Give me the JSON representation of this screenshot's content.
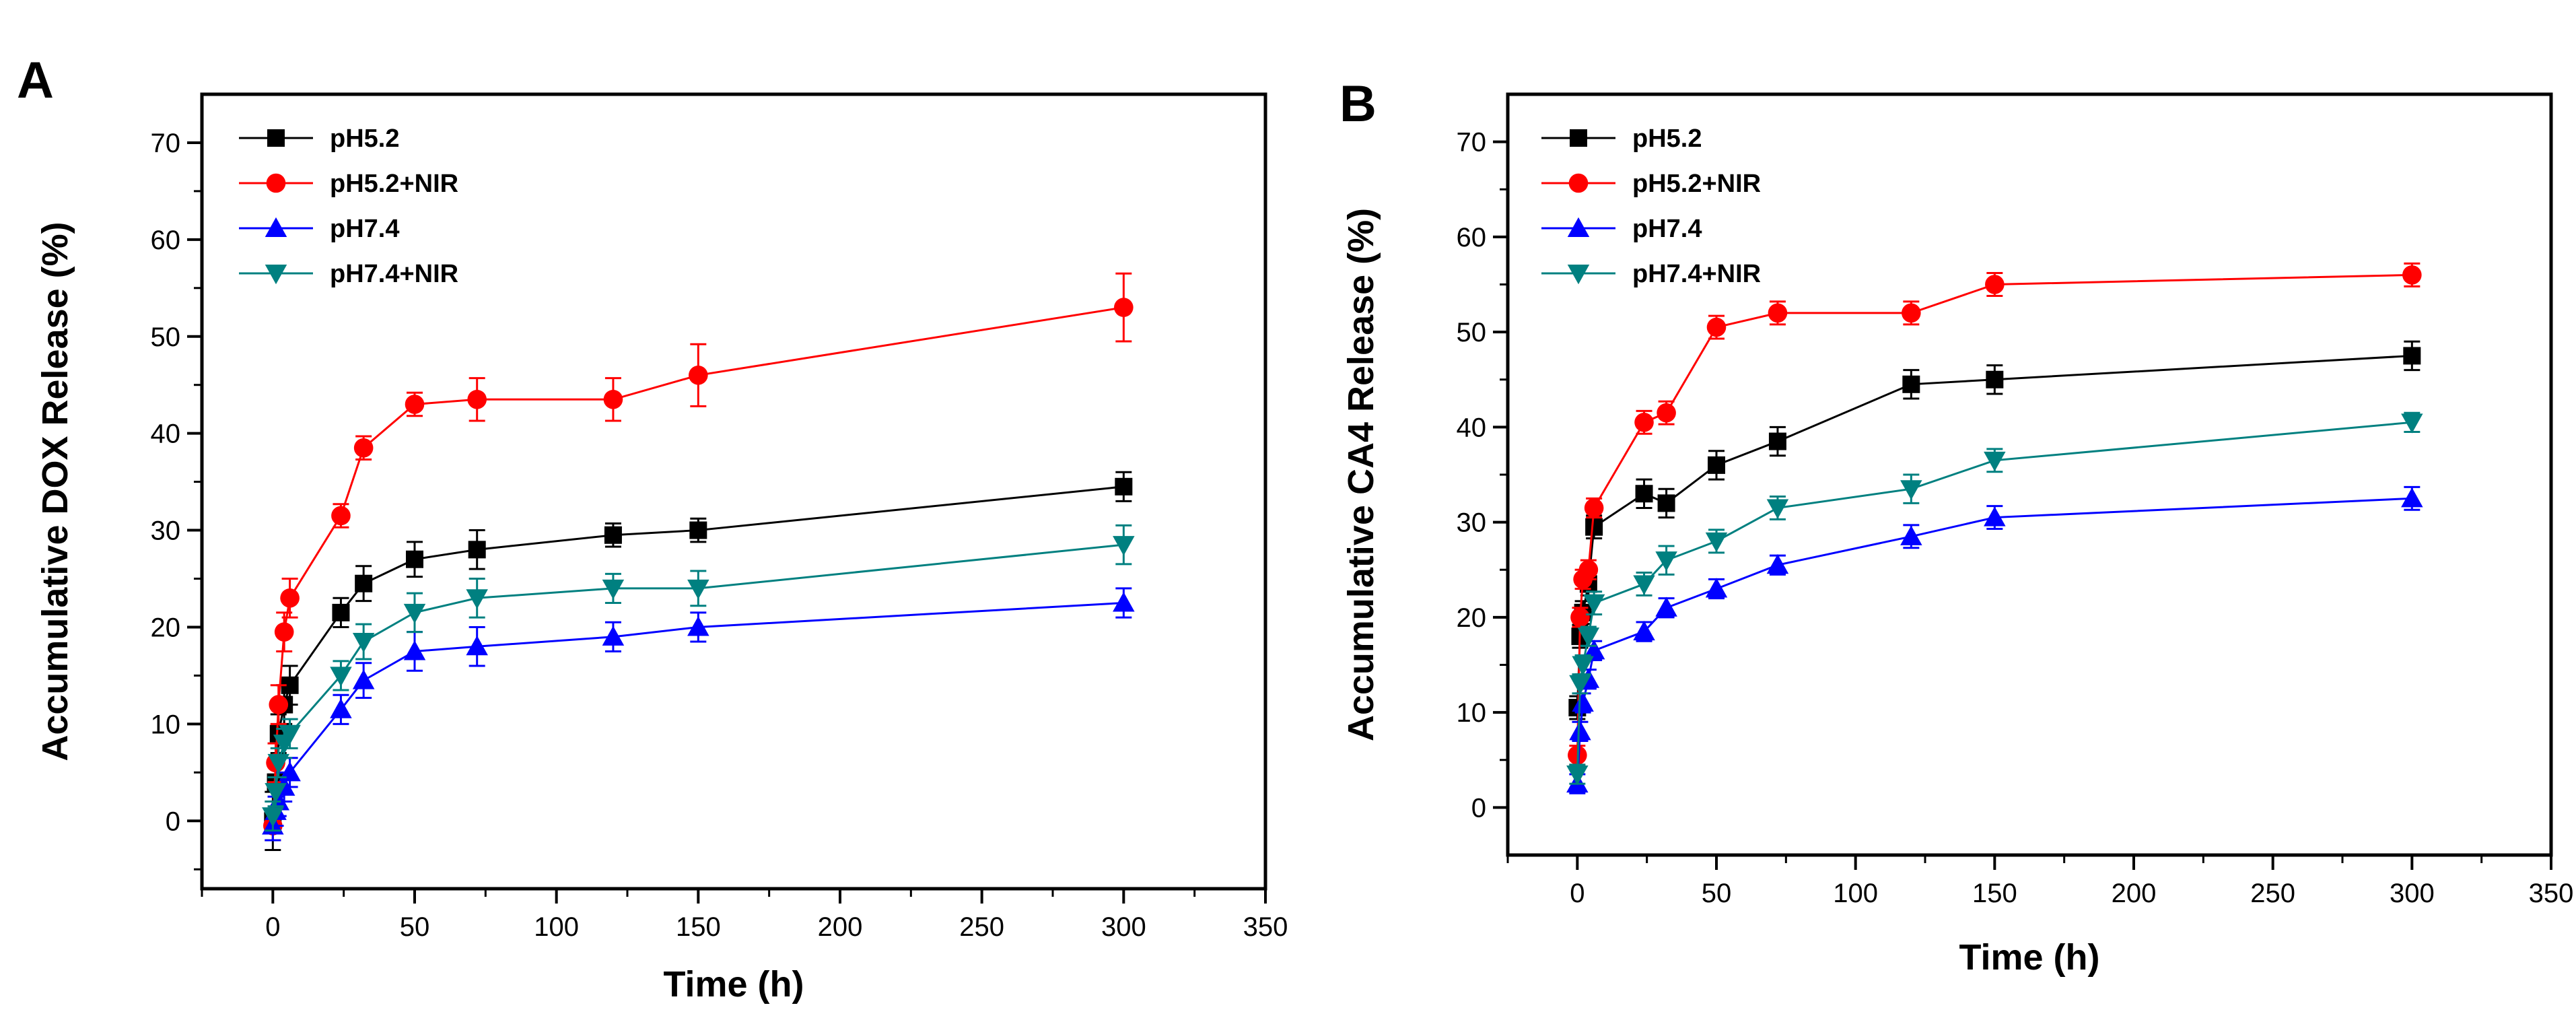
{
  "chart_data": [
    {
      "type": "line",
      "panel_label": "A",
      "title": "",
      "xlabel": "Time (h)",
      "ylabel": "Accumulative DOX Release (%)",
      "xlim": [
        -25,
        350
      ],
      "ylim": [
        -7,
        75
      ],
      "xticks": [
        0,
        50,
        100,
        150,
        200,
        250,
        300,
        350
      ],
      "yticks": [
        0,
        10,
        20,
        30,
        40,
        50,
        60,
        70
      ],
      "legend_position": "top-left",
      "grid": false,
      "series": [
        {
          "name": "pH5.2",
          "color": "#000000",
          "marker": "square",
          "x": [
            0,
            1,
            2,
            4,
            6,
            24,
            32,
            50,
            72,
            120,
            150,
            300
          ],
          "y": [
            0,
            4,
            9,
            12,
            14,
            21.5,
            24.5,
            27,
            28,
            29.5,
            30,
            34.5
          ],
          "err": [
            3,
            2,
            2,
            2,
            2,
            1.5,
            1.8,
            1.8,
            2,
            1.2,
            1.2,
            1.5
          ]
        },
        {
          "name": "pH5.2+NIR",
          "color": "#ff0000",
          "marker": "circle",
          "x": [
            0,
            1,
            2,
            4,
            6,
            24,
            32,
            50,
            72,
            120,
            150,
            300
          ],
          "y": [
            -0.5,
            6,
            12,
            19.5,
            23,
            31.5,
            38.5,
            43,
            43.5,
            43.5,
            46,
            53
          ],
          "err": [
            1.5,
            2,
            2,
            2,
            2,
            1.2,
            1.2,
            1.2,
            2.2,
            2.2,
            3.2,
            3.5
          ]
        },
        {
          "name": "pH7.4",
          "color": "#0000ff",
          "marker": "triangle-up",
          "x": [
            0,
            1,
            2,
            4,
            6,
            24,
            32,
            50,
            72,
            120,
            150,
            300
          ],
          "y": [
            -0.5,
            1,
            2,
            3.5,
            5,
            11.5,
            14.5,
            17.5,
            18,
            19,
            20,
            22.5
          ],
          "err": [
            1.5,
            1.5,
            1.5,
            1.5,
            1.5,
            1.5,
            1.8,
            2,
            2,
            1.5,
            1.5,
            1.5
          ]
        },
        {
          "name": "pH7.4+NIR",
          "color": "#008080",
          "marker": "triangle-down",
          "x": [
            0,
            1,
            2,
            4,
            6,
            24,
            32,
            50,
            72,
            120,
            150,
            300
          ],
          "y": [
            0.5,
            3,
            6,
            8,
            9,
            15,
            18.5,
            21.5,
            23,
            24,
            24,
            28.5
          ],
          "err": [
            1.5,
            1.5,
            1.5,
            1.5,
            1.5,
            1.5,
            1.8,
            2,
            2,
            1.5,
            1.8,
            2
          ]
        }
      ]
    },
    {
      "type": "line",
      "panel_label": "B",
      "title": "",
      "xlabel": "Time (h)",
      "ylabel": "Accumulative CA4 Release (%)",
      "xlim": [
        -25,
        350
      ],
      "ylim": [
        -5,
        75
      ],
      "xticks": [
        0,
        50,
        100,
        150,
        200,
        250,
        300,
        350
      ],
      "yticks": [
        0,
        10,
        20,
        30,
        40,
        50,
        60,
        70
      ],
      "legend_position": "top-left",
      "grid": false,
      "series": [
        {
          "name": "pH5.2",
          "color": "#000000",
          "marker": "square",
          "x": [
            0,
            1,
            2,
            4,
            6,
            24,
            32,
            50,
            72,
            120,
            150,
            300
          ],
          "y": [
            10.5,
            18,
            20.5,
            23.5,
            29.5,
            33,
            32,
            36,
            38.5,
            44.5,
            45,
            47.5
          ],
          "err": [
            1.2,
            1.2,
            1.2,
            1.2,
            1.2,
            1.5,
            1.5,
            1.5,
            1.5,
            1.5,
            1.5,
            1.5
          ]
        },
        {
          "name": "pH5.2+NIR",
          "color": "#ff0000",
          "marker": "circle",
          "x": [
            0,
            1,
            2,
            4,
            6,
            24,
            32,
            50,
            72,
            120,
            150,
            300
          ],
          "y": [
            5.5,
            20,
            24,
            25,
            31.5,
            40.5,
            41.5,
            50.5,
            52,
            52,
            55,
            56
          ],
          "err": [
            1,
            1,
            1,
            1,
            1,
            1.2,
            1.2,
            1.2,
            1.2,
            1.2,
            1.2,
            1.2
          ]
        },
        {
          "name": "pH7.4",
          "color": "#0000ff",
          "marker": "triangle-up",
          "x": [
            0,
            1,
            2,
            4,
            6,
            24,
            32,
            50,
            72,
            120,
            150,
            300
          ],
          "y": [
            2.5,
            8,
            11,
            13.5,
            16.5,
            18.5,
            21,
            23,
            25.5,
            28.5,
            30.5,
            32.5
          ],
          "err": [
            1,
            1,
            1,
            1,
            1,
            1,
            1,
            1,
            1,
            1.2,
            1.2,
            1.2
          ]
        },
        {
          "name": "pH7.4+NIR",
          "color": "#008080",
          "marker": "triangle-down",
          "x": [
            0,
            1,
            2,
            4,
            6,
            24,
            32,
            50,
            72,
            120,
            150,
            300
          ],
          "y": [
            3.5,
            13,
            15,
            18,
            21.5,
            23.5,
            26,
            28,
            31.5,
            33.5,
            36.5,
            40.5
          ],
          "err": [
            1,
            1,
            1,
            1,
            1.2,
            1.2,
            1.5,
            1.2,
            1.2,
            1.5,
            1.2,
            1
          ]
        }
      ]
    }
  ]
}
